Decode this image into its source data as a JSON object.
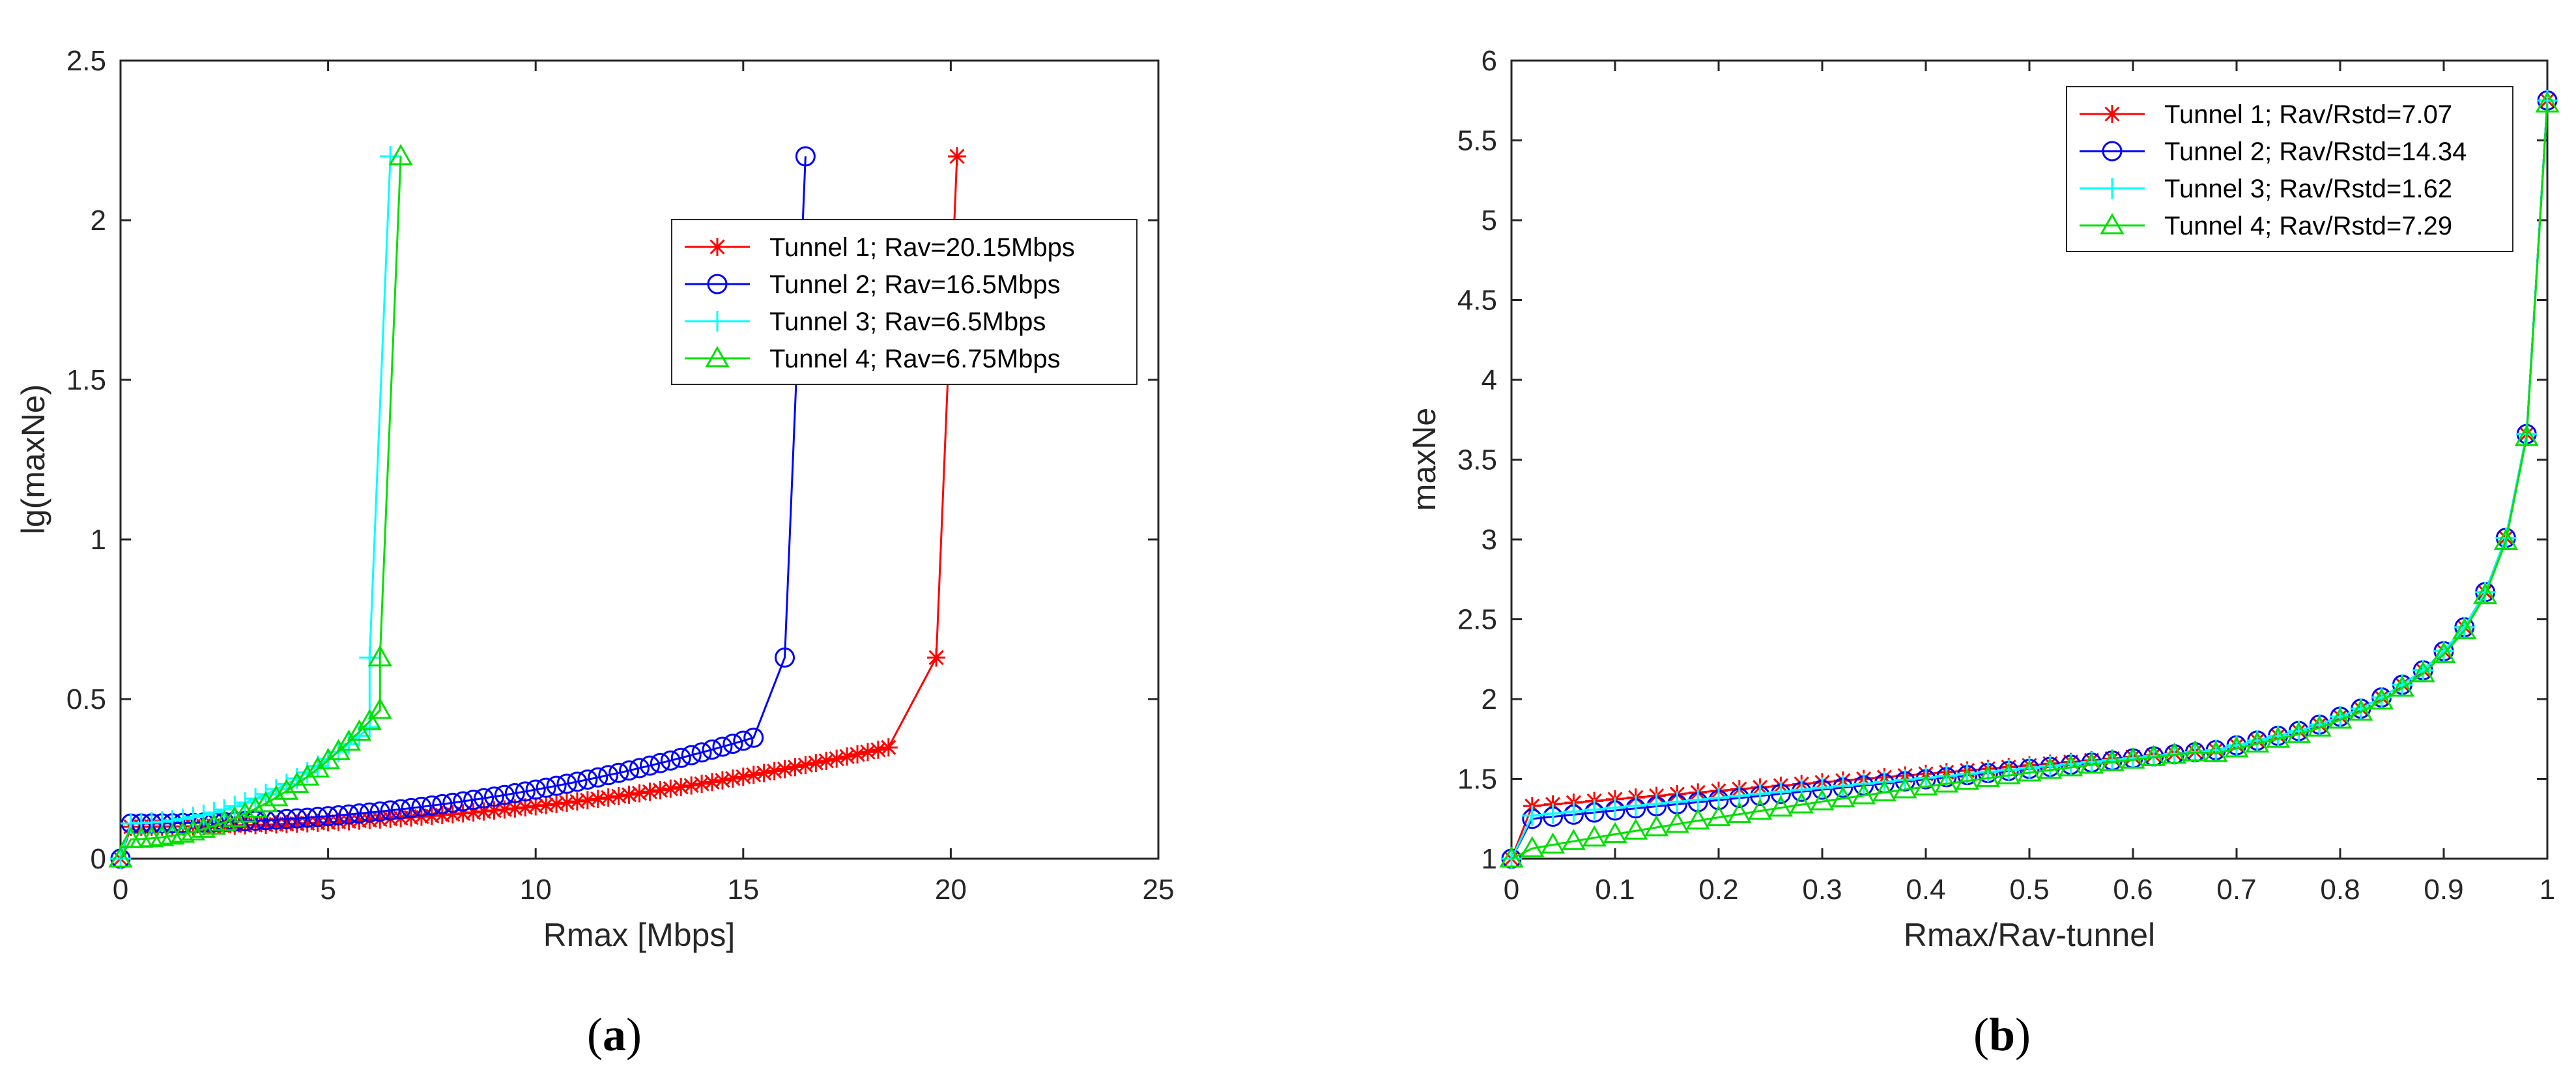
{
  "chart_data": [
    {
      "type": "line",
      "caption_letter": "a",
      "xlabel": "Rmax [Mbps]",
      "ylabel": "lg(maxNe)",
      "xlim": [
        0,
        25
      ],
      "ylim": [
        0,
        2.5
      ],
      "xticks": [
        0,
        5,
        10,
        15,
        20,
        25
      ],
      "yticks": [
        0,
        0.5,
        1,
        1.5,
        2,
        2.5
      ],
      "xtick_labels": [
        "0",
        "5",
        "10",
        "15",
        "20",
        "25"
      ],
      "ytick_labels": [
        "0",
        "0.5",
        "1",
        "1.5",
        "2",
        "2.5"
      ],
      "legend_position": "upper-right",
      "series": [
        {
          "name": "Tunnel 1; Rav=20.15Mbps",
          "color": "#ff0000",
          "marker": "star",
          "rav": 20.15,
          "a0": 0.1,
          "rise": 0.3
        },
        {
          "name": "Tunnel 2; Rav=16.5Mbps",
          "color": "#0000ff",
          "marker": "circle",
          "rav": 16.5,
          "a0": 0.11,
          "rise": 0.32
        },
        {
          "name": "Tunnel 3; Rav=6.5Mbps",
          "color": "#00ffff",
          "marker": "plus",
          "rav": 6.5,
          "a0": 0.11,
          "rise": 0.36
        },
        {
          "name": "Tunnel 4; Rav=6.75Mbps",
          "color": "#00e000",
          "marker": "triangle",
          "rav": 6.75,
          "a0": 0.06,
          "rise": 0.48
        }
      ],
      "peak_value": 2.2,
      "secondary_value": 0.63
    },
    {
      "type": "line",
      "caption_letter": "b",
      "xlabel": "Rmax/Rav-tunnel",
      "ylabel": "maxNe",
      "xlim": [
        0,
        1
      ],
      "ylim": [
        1,
        6
      ],
      "xticks": [
        0,
        0.1,
        0.2,
        0.3,
        0.4,
        0.5,
        0.6,
        0.7,
        0.8,
        0.9,
        1
      ],
      "yticks": [
        1,
        1.5,
        2,
        2.5,
        3,
        3.5,
        4,
        4.5,
        5,
        5.5,
        6
      ],
      "xtick_labels": [
        "0",
        "0.1",
        "0.2",
        "0.3",
        "0.4",
        "0.5",
        "0.6",
        "0.7",
        "0.8",
        "0.9",
        "1"
      ],
      "ytick_labels": [
        "1",
        "1.5",
        "2",
        "2.5",
        "3",
        "3.5",
        "4",
        "4.5",
        "5",
        "5.5",
        "6"
      ],
      "legend_position": "upper-right",
      "x": [
        0,
        0.02,
        0.04,
        0.06,
        0.08,
        0.1,
        0.12,
        0.14,
        0.16,
        0.18,
        0.2,
        0.22,
        0.24,
        0.26,
        0.28,
        0.3,
        0.32,
        0.34,
        0.36,
        0.38,
        0.4,
        0.42,
        0.44,
        0.46,
        0.48,
        0.5,
        0.52,
        0.54,
        0.56,
        0.58,
        0.6,
        0.62,
        0.64,
        0.66,
        0.68,
        0.7,
        0.72,
        0.74,
        0.76,
        0.78,
        0.8,
        0.82,
        0.84,
        0.86,
        0.88,
        0.9,
        0.92,
        0.94,
        0.96,
        0.98,
        1
      ],
      "series": [
        {
          "name": "Tunnel 1; Rav/Rstd=7.07",
          "color": "#ff0000",
          "marker": "star",
          "first": 1.33
        },
        {
          "name": "Tunnel 2; Rav/Rstd=14.34",
          "color": "#0000ff",
          "marker": "circle",
          "first": 1.25
        },
        {
          "name": "Tunnel 3; Rav/Rstd=1.62",
          "color": "#00ffff",
          "marker": "plus",
          "first": 1.27
        },
        {
          "name": "Tunnel 4; Rav/Rstd=7.29",
          "color": "#00e000",
          "marker": "triangle",
          "first": 1.06
        }
      ],
      "tail": [
        1.68,
        1.71,
        1.74,
        1.77,
        1.8,
        1.84,
        1.89,
        1.94,
        2.01,
        2.09,
        2.18,
        2.3,
        2.45,
        2.67,
        3.01,
        3.66,
        5.75
      ]
    }
  ]
}
